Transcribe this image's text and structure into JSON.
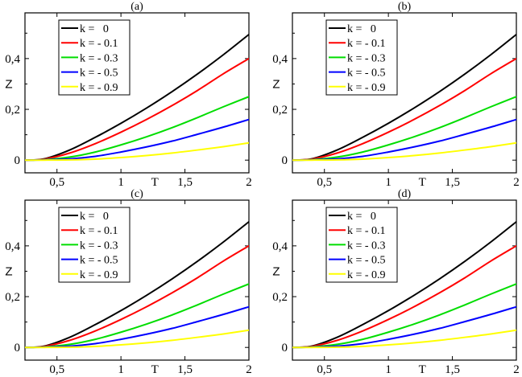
{
  "chart_data": [
    {
      "panel_label": "(a)",
      "type": "line",
      "xlabel": "T",
      "ylabel": "Z",
      "xlim": [
        0.25,
        2.0
      ],
      "ylim": [
        -0.05,
        0.58
      ],
      "xticks": [
        {
          "v": 0.5,
          "label": "0,5"
        },
        {
          "v": 1.0,
          "label": "1"
        },
        {
          "v": 1.5,
          "label": "1,5"
        },
        {
          "v": 2.0,
          "label": "2"
        }
      ],
      "yticks": [
        {
          "v": 0.0,
          "label": "0"
        },
        {
          "v": 0.2,
          "label": "0,2"
        },
        {
          "v": 0.4,
          "label": "0,4"
        }
      ],
      "legend_position": "top-left",
      "series": [
        {
          "name": "k =   0",
          "color": "#000000",
          "x": [
            0.25,
            0.4,
            0.6,
            0.8,
            1.0,
            1.2,
            1.4,
            1.6,
            1.8,
            2.0
          ],
          "y": [
            0.0,
            0.005,
            0.04,
            0.09,
            0.145,
            0.205,
            0.27,
            0.34,
            0.415,
            0.495
          ]
        },
        {
          "name": "k = - 0.1",
          "color": "#ff0000",
          "x": [
            0.25,
            0.4,
            0.6,
            0.8,
            1.0,
            1.2,
            1.4,
            1.6,
            1.8,
            2.0
          ],
          "y": [
            0.0,
            0.004,
            0.028,
            0.065,
            0.11,
            0.16,
            0.215,
            0.275,
            0.34,
            0.4
          ]
        },
        {
          "name": "k = - 0.3",
          "color": "#00dd00",
          "x": [
            0.25,
            0.4,
            0.6,
            0.8,
            1.0,
            1.2,
            1.4,
            1.6,
            1.8,
            2.0
          ],
          "y": [
            0.0,
            0.002,
            0.012,
            0.032,
            0.06,
            0.092,
            0.128,
            0.168,
            0.21,
            0.25
          ]
        },
        {
          "name": "k = - 0.5",
          "color": "#0000ff",
          "x": [
            0.25,
            0.4,
            0.6,
            0.8,
            1.0,
            1.2,
            1.4,
            1.6,
            1.8,
            2.0
          ],
          "y": [
            0.0,
            0.001,
            0.005,
            0.015,
            0.032,
            0.052,
            0.075,
            0.102,
            0.13,
            0.16
          ]
        },
        {
          "name": "k = - 0.9",
          "color": "#ffff00",
          "x": [
            0.25,
            0.4,
            0.6,
            0.8,
            1.0,
            1.2,
            1.4,
            1.6,
            1.8,
            2.0
          ],
          "y": [
            0.0,
            0.0,
            0.001,
            0.004,
            0.01,
            0.018,
            0.028,
            0.04,
            0.053,
            0.068
          ]
        }
      ]
    },
    {
      "panel_label": "(b)",
      "type": "line",
      "xlabel": "T",
      "ylabel": "Z",
      "xlim": [
        0.25,
        2.0
      ],
      "ylim": [
        -0.05,
        0.58
      ],
      "xticks": [
        {
          "v": 0.5,
          "label": "0,5"
        },
        {
          "v": 1.0,
          "label": "1"
        },
        {
          "v": 1.5,
          "label": "1,5"
        },
        {
          "v": 2.0,
          "label": "2"
        }
      ],
      "yticks": [
        {
          "v": 0.0,
          "label": "0"
        },
        {
          "v": 0.2,
          "label": "0,2"
        },
        {
          "v": 0.4,
          "label": "0,4"
        }
      ],
      "legend_position": "top-left",
      "series": [
        {
          "name": "k =   0",
          "color": "#000000",
          "x": [
            0.25,
            0.4,
            0.6,
            0.8,
            1.0,
            1.2,
            1.4,
            1.6,
            1.8,
            2.0
          ],
          "y": [
            0.0,
            0.005,
            0.04,
            0.09,
            0.145,
            0.205,
            0.27,
            0.34,
            0.415,
            0.495
          ]
        },
        {
          "name": "k = - 0.1",
          "color": "#ff0000",
          "x": [
            0.25,
            0.4,
            0.6,
            0.8,
            1.0,
            1.2,
            1.4,
            1.6,
            1.8,
            2.0
          ],
          "y": [
            0.0,
            0.004,
            0.028,
            0.065,
            0.11,
            0.16,
            0.215,
            0.275,
            0.34,
            0.4
          ]
        },
        {
          "name": "k = - 0.3",
          "color": "#00dd00",
          "x": [
            0.25,
            0.4,
            0.6,
            0.8,
            1.0,
            1.2,
            1.4,
            1.6,
            1.8,
            2.0
          ],
          "y": [
            0.0,
            0.002,
            0.012,
            0.032,
            0.06,
            0.092,
            0.128,
            0.168,
            0.21,
            0.25
          ]
        },
        {
          "name": "k = - 0.5",
          "color": "#0000ff",
          "x": [
            0.25,
            0.4,
            0.6,
            0.8,
            1.0,
            1.2,
            1.4,
            1.6,
            1.8,
            2.0
          ],
          "y": [
            0.0,
            0.001,
            0.005,
            0.015,
            0.032,
            0.052,
            0.075,
            0.102,
            0.13,
            0.16
          ]
        },
        {
          "name": "k = - 0.9",
          "color": "#ffff00",
          "x": [
            0.25,
            0.4,
            0.6,
            0.8,
            1.0,
            1.2,
            1.4,
            1.6,
            1.8,
            2.0
          ],
          "y": [
            0.0,
            0.0,
            0.001,
            0.004,
            0.01,
            0.018,
            0.028,
            0.04,
            0.053,
            0.068
          ]
        }
      ]
    },
    {
      "panel_label": "(c)",
      "type": "line",
      "xlabel": "T",
      "ylabel": "Z",
      "xlim": [
        0.25,
        2.0
      ],
      "ylim": [
        -0.05,
        0.58
      ],
      "xticks": [
        {
          "v": 0.5,
          "label": "0,5"
        },
        {
          "v": 1.0,
          "label": "1"
        },
        {
          "v": 1.5,
          "label": "1,5"
        },
        {
          "v": 2.0,
          "label": "2"
        }
      ],
      "yticks": [
        {
          "v": 0.0,
          "label": "0"
        },
        {
          "v": 0.2,
          "label": "0,2"
        },
        {
          "v": 0.4,
          "label": "0,4"
        }
      ],
      "legend_position": "top-left",
      "series": [
        {
          "name": "k =   0",
          "color": "#000000",
          "x": [
            0.25,
            0.4,
            0.6,
            0.8,
            1.0,
            1.2,
            1.4,
            1.6,
            1.8,
            2.0
          ],
          "y": [
            0.0,
            0.005,
            0.04,
            0.09,
            0.145,
            0.205,
            0.27,
            0.34,
            0.415,
            0.495
          ]
        },
        {
          "name": "k = - 0.1",
          "color": "#ff0000",
          "x": [
            0.25,
            0.4,
            0.6,
            0.8,
            1.0,
            1.2,
            1.4,
            1.6,
            1.8,
            2.0
          ],
          "y": [
            0.0,
            0.004,
            0.028,
            0.065,
            0.11,
            0.16,
            0.215,
            0.275,
            0.34,
            0.4
          ]
        },
        {
          "name": "k = - 0.3",
          "color": "#00dd00",
          "x": [
            0.25,
            0.4,
            0.6,
            0.8,
            1.0,
            1.2,
            1.4,
            1.6,
            1.8,
            2.0
          ],
          "y": [
            0.0,
            0.002,
            0.012,
            0.032,
            0.06,
            0.092,
            0.128,
            0.168,
            0.21,
            0.25
          ]
        },
        {
          "name": "k = - 0.5",
          "color": "#0000ff",
          "x": [
            0.25,
            0.4,
            0.6,
            0.8,
            1.0,
            1.2,
            1.4,
            1.6,
            1.8,
            2.0
          ],
          "y": [
            0.0,
            0.001,
            0.005,
            0.015,
            0.032,
            0.052,
            0.075,
            0.102,
            0.13,
            0.16
          ]
        },
        {
          "name": "k = - 0.9",
          "color": "#ffff00",
          "x": [
            0.25,
            0.4,
            0.6,
            0.8,
            1.0,
            1.2,
            1.4,
            1.6,
            1.8,
            2.0
          ],
          "y": [
            0.0,
            0.0,
            0.001,
            0.004,
            0.01,
            0.018,
            0.028,
            0.04,
            0.053,
            0.068
          ]
        }
      ]
    },
    {
      "panel_label": "(d)",
      "type": "line",
      "xlabel": "T",
      "ylabel": "Z",
      "xlim": [
        0.25,
        2.0
      ],
      "ylim": [
        -0.05,
        0.58
      ],
      "xticks": [
        {
          "v": 0.5,
          "label": "0,5"
        },
        {
          "v": 1.0,
          "label": "1"
        },
        {
          "v": 1.5,
          "label": "1,5"
        },
        {
          "v": 2.0,
          "label": "2"
        }
      ],
      "yticks": [
        {
          "v": 0.0,
          "label": "0"
        },
        {
          "v": 0.2,
          "label": "0,2"
        },
        {
          "v": 0.4,
          "label": "0,4"
        }
      ],
      "legend_position": "top-left",
      "series": [
        {
          "name": "k =   0",
          "color": "#000000",
          "x": [
            0.25,
            0.4,
            0.6,
            0.8,
            1.0,
            1.2,
            1.4,
            1.6,
            1.8,
            2.0
          ],
          "y": [
            0.0,
            0.005,
            0.04,
            0.09,
            0.145,
            0.205,
            0.27,
            0.34,
            0.415,
            0.495
          ]
        },
        {
          "name": "k = - 0.1",
          "color": "#ff0000",
          "x": [
            0.25,
            0.4,
            0.6,
            0.8,
            1.0,
            1.2,
            1.4,
            1.6,
            1.8,
            2.0
          ],
          "y": [
            0.0,
            0.004,
            0.028,
            0.065,
            0.11,
            0.16,
            0.215,
            0.275,
            0.34,
            0.4
          ]
        },
        {
          "name": "k = - 0.3",
          "color": "#00dd00",
          "x": [
            0.25,
            0.4,
            0.6,
            0.8,
            1.0,
            1.2,
            1.4,
            1.6,
            1.8,
            2.0
          ],
          "y": [
            0.0,
            0.002,
            0.012,
            0.032,
            0.06,
            0.092,
            0.128,
            0.168,
            0.21,
            0.25
          ]
        },
        {
          "name": "k = - 0.5",
          "color": "#0000ff",
          "x": [
            0.25,
            0.4,
            0.6,
            0.8,
            1.0,
            1.2,
            1.4,
            1.6,
            1.8,
            2.0
          ],
          "y": [
            0.0,
            0.001,
            0.005,
            0.015,
            0.032,
            0.052,
            0.075,
            0.102,
            0.13,
            0.16
          ]
        },
        {
          "name": "k = - 0.9",
          "color": "#ffff00",
          "x": [
            0.25,
            0.4,
            0.6,
            0.8,
            1.0,
            1.2,
            1.4,
            1.6,
            1.8,
            2.0
          ],
          "y": [
            0.0,
            0.0,
            0.001,
            0.004,
            0.01,
            0.018,
            0.028,
            0.04,
            0.053,
            0.068
          ]
        }
      ]
    }
  ]
}
